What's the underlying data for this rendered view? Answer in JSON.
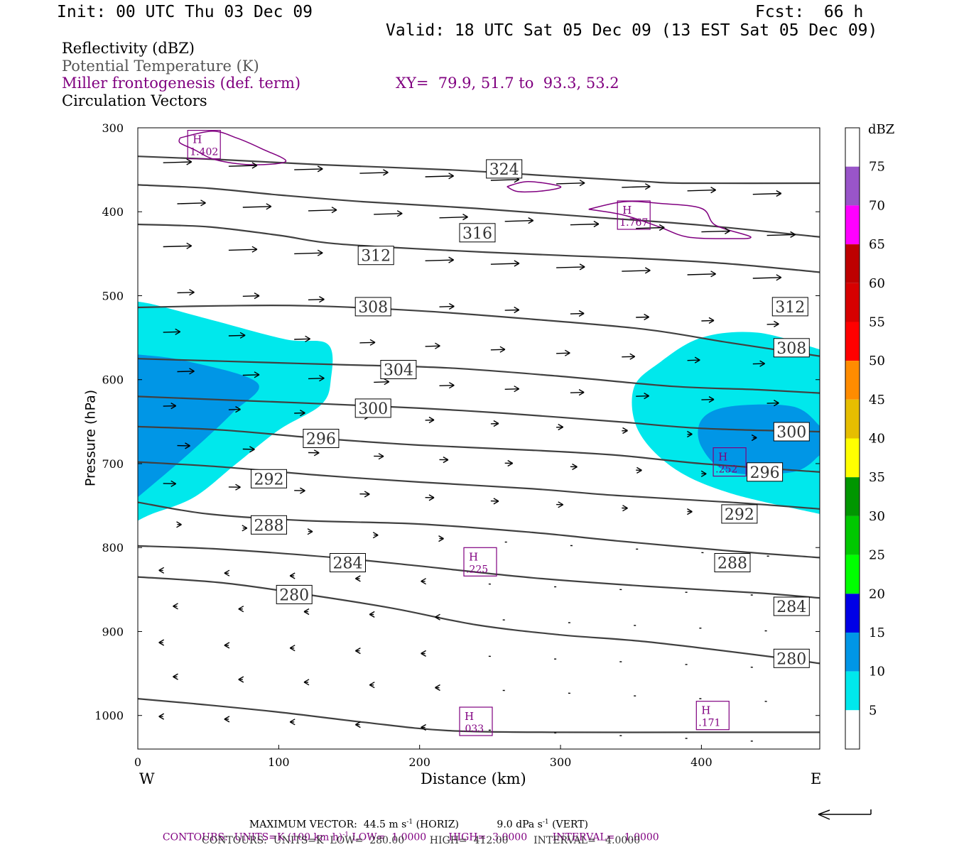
{
  "header": {
    "init": "Init: 00 UTC Thu 03 Dec 09",
    "fcst": "Fcst:  66 h",
    "valid": "Valid: 18 UTC Sat 05 Dec 09 (13 EST Sat 05 Dec 09)"
  },
  "legend_lines": {
    "reflectivity": "Reflectivity (dBZ)",
    "theta": "Potential Temperature (K)",
    "frontogenesis": "Miller frontogenesis (def. term)",
    "xy": "XY=  79.9, 51.7 to  93.3, 53.2",
    "vectors": "Circulation Vectors"
  },
  "footer": {
    "max_vector_label": "MAXIMUM VECTOR:",
    "max_vector_horiz": "44.5 m s",
    "max_vector_horiz_unit": "(HORIZ)",
    "max_vector_vert": "9.0 dPa s",
    "max_vector_vert_unit": "(VERT)",
    "contours_purple": "CONTOURS:  UNITS=K (100 km h)",
    "contours_purple_rest": " LOW=  1.0000       HIGH=  3.0000        INTERVAL=   1.0000",
    "contours_black": "CONTOURS:  UNITS=K  LOW=  280.00        HIGH=  412.00        INTERVAL=   4.0000"
  },
  "colors": {
    "cyan": "#00e8ec",
    "blue10": "#0096e6",
    "theta": "#404040",
    "front": "#800080"
  },
  "chart_data": {
    "type": "cross-section",
    "xlabel": "Distance (km)",
    "ylabel": "Pressure (hPa)",
    "xlim": [
      0,
      484
    ],
    "ylim": [
      1040,
      300
    ],
    "x_ticks": [
      0,
      100,
      200,
      300,
      400
    ],
    "y_ticks": [
      300,
      400,
      500,
      600,
      700,
      800,
      900,
      1000
    ],
    "x_end_labels": {
      "left": "W",
      "right": "E"
    },
    "colorbar": {
      "unit": "dBZ",
      "levels": [
        5,
        10,
        15,
        20,
        25,
        30,
        35,
        40,
        45,
        50,
        55,
        60,
        65,
        70,
        75
      ],
      "colors": [
        "#ffffff",
        "#00e8ec",
        "#0096e6",
        "#0000e6",
        "#00ff00",
        "#00c800",
        "#009600",
        "#ffff00",
        "#e6be00",
        "#ff8c00",
        "#ff0000",
        "#d70000",
        "#bd0000",
        "#ff00ff",
        "#9955c9",
        "#ffffff"
      ]
    },
    "reflectivity_areas": [
      {
        "dbz": 5,
        "points": [
          [
            0,
            507
          ],
          [
            15,
            512
          ],
          [
            55,
            530
          ],
          [
            105,
            552
          ],
          [
            135,
            558
          ],
          [
            137,
            600
          ],
          [
            130,
            630
          ],
          [
            100,
            660
          ],
          [
            70,
            700
          ],
          [
            40,
            740
          ],
          [
            10,
            760
          ],
          [
            0,
            768
          ]
        ]
      },
      {
        "dbz": 10,
        "points": [
          [
            0,
            570
          ],
          [
            35,
            578
          ],
          [
            85,
            604
          ],
          [
            67,
            640
          ],
          [
            35,
            690
          ],
          [
            0,
            740
          ]
        ]
      },
      {
        "dbz": 5,
        "points": [
          [
            484,
            564
          ],
          [
            440,
            544
          ],
          [
            400,
            550
          ],
          [
            370,
            580
          ],
          [
            352,
            610
          ],
          [
            355,
            660
          ],
          [
            380,
            705
          ],
          [
            420,
            735
          ],
          [
            484,
            760
          ]
        ]
      },
      {
        "dbz": 10,
        "points": [
          [
            484,
            655
          ],
          [
            465,
            632
          ],
          [
            420,
            632
          ],
          [
            400,
            648
          ],
          [
            400,
            680
          ],
          [
            420,
            710
          ],
          [
            465,
            710
          ],
          [
            484,
            690
          ]
        ]
      }
    ],
    "theta_contours": [
      {
        "level": 324,
        "points": [
          [
            0,
            334
          ],
          [
            60,
            338
          ],
          [
            130,
            344
          ],
          [
            220,
            350
          ],
          [
            300,
            358
          ],
          [
            360,
            364
          ],
          [
            390,
            366
          ],
          [
            484,
            366
          ]
        ],
        "labels": [
          [
            260,
            349
          ]
        ]
      },
      {
        "level": 320,
        "points": [
          [
            0,
            368
          ],
          [
            50,
            372
          ],
          [
            100,
            380
          ],
          [
            160,
            388
          ],
          [
            240,
            396
          ],
          [
            320,
            406
          ],
          [
            400,
            416
          ],
          [
            484,
            430
          ]
        ],
        "labels": []
      },
      {
        "level": 316,
        "points": [
          [
            0,
            415
          ],
          [
            50,
            418
          ],
          [
            100,
            428
          ],
          [
            140,
            438
          ],
          [
            220,
            446
          ],
          [
            300,
            452
          ],
          [
            360,
            456
          ],
          [
            420,
            462
          ],
          [
            484,
            472
          ]
        ],
        "labels": [
          [
            241,
            425
          ]
        ]
      },
      {
        "level": 312,
        "points": [
          [
            0,
            514
          ],
          [
            60,
            512
          ],
          [
            120,
            512
          ],
          [
            200,
            518
          ],
          [
            280,
            528
          ],
          [
            360,
            540
          ],
          [
            420,
            556
          ],
          [
            484,
            572
          ]
        ],
        "labels": [
          [
            169,
            452
          ],
          [
            463,
            513
          ]
        ]
      },
      {
        "level": 308,
        "points": [
          [
            0,
            575
          ],
          [
            60,
            578
          ],
          [
            140,
            582
          ],
          [
            220,
            586
          ],
          [
            300,
            596
          ],
          [
            380,
            608
          ],
          [
            440,
            612
          ],
          [
            484,
            616
          ]
        ],
        "labels": [
          [
            167,
            513
          ],
          [
            464,
            562
          ]
        ]
      },
      {
        "level": 304,
        "points": [
          [
            0,
            620
          ],
          [
            60,
            624
          ],
          [
            120,
            628
          ],
          [
            200,
            634
          ],
          [
            260,
            640
          ],
          [
            340,
            650
          ],
          [
            400,
            658
          ],
          [
            484,
            662
          ]
        ],
        "labels": [
          [
            185,
            588
          ]
        ]
      },
      {
        "level": 300,
        "points": [
          [
            0,
            656
          ],
          [
            60,
            660
          ],
          [
            130,
            670
          ],
          [
            200,
            678
          ],
          [
            280,
            684
          ],
          [
            340,
            690
          ],
          [
            400,
            700
          ],
          [
            484,
            710
          ]
        ],
        "labels": [
          [
            167,
            634
          ],
          [
            464,
            662
          ]
        ]
      },
      {
        "level": 296,
        "points": [
          [
            0,
            698
          ],
          [
            60,
            704
          ],
          [
            130,
            714
          ],
          [
            200,
            722
          ],
          [
            280,
            730
          ],
          [
            340,
            738
          ],
          [
            420,
            746
          ],
          [
            484,
            754
          ]
        ],
        "labels": [
          [
            130,
            670
          ],
          [
            445,
            710
          ]
        ]
      },
      {
        "level": 292,
        "points": [
          [
            0,
            746
          ],
          [
            50,
            760
          ],
          [
            120,
            768
          ],
          [
            200,
            772
          ],
          [
            280,
            782
          ],
          [
            340,
            792
          ],
          [
            420,
            804
          ],
          [
            484,
            812
          ]
        ],
        "labels": [
          [
            93,
            718
          ],
          [
            427,
            760
          ]
        ]
      },
      {
        "level": 288,
        "points": [
          [
            0,
            798
          ],
          [
            60,
            802
          ],
          [
            140,
            812
          ],
          [
            200,
            822
          ],
          [
            280,
            836
          ],
          [
            360,
            846
          ],
          [
            440,
            854
          ],
          [
            484,
            860
          ]
        ],
        "labels": [
          [
            93,
            773
          ],
          [
            422,
            818
          ]
        ]
      },
      {
        "level": 284,
        "points": [
          [
            0,
            835
          ],
          [
            60,
            842
          ],
          [
            120,
            856
          ],
          [
            180,
            872
          ],
          [
            240,
            892
          ],
          [
            300,
            904
          ],
          [
            360,
            912
          ],
          [
            440,
            928
          ],
          [
            484,
            938
          ]
        ],
        "labels": [
          [
            149,
            818
          ],
          [
            464,
            870
          ]
        ]
      },
      {
        "level": 280,
        "points": [
          [
            0,
            980
          ],
          [
            40,
            986
          ],
          [
            100,
            996
          ],
          [
            160,
            1008
          ],
          [
            220,
            1018
          ],
          [
            300,
            1020
          ],
          [
            400,
            1020
          ],
          [
            484,
            1020
          ]
        ],
        "labels": [
          [
            111,
            856
          ],
          [
            464,
            932
          ]
        ]
      }
    ],
    "frontogenesis_contours": [
      {
        "points": [
          [
            30,
            312
          ],
          [
            53,
            304
          ],
          [
            70,
            312
          ],
          [
            88,
            325
          ],
          [
            105,
            340
          ],
          [
            80,
            344
          ],
          [
            55,
            338
          ],
          [
            40,
            326
          ],
          [
            30,
            318
          ],
          [
            30,
            312
          ]
        ]
      },
      {
        "points": [
          [
            262,
            370
          ],
          [
            277,
            364
          ],
          [
            300,
            370
          ],
          [
            288,
            375
          ],
          [
            270,
            376
          ],
          [
            262,
            370
          ]
        ]
      },
      {
        "points": [
          [
            320,
            397
          ],
          [
            345,
            388
          ],
          [
            370,
            390
          ],
          [
            400,
            396
          ],
          [
            410,
            416
          ],
          [
            435,
            430
          ],
          [
            418,
            432
          ],
          [
            390,
            430
          ],
          [
            370,
            418
          ],
          [
            345,
            404
          ],
          [
            320,
            397
          ]
        ]
      }
    ],
    "highs": [
      {
        "x": 47,
        "p": 320,
        "value": "1.402"
      },
      {
        "x": 352,
        "p": 404,
        "value": "1.767"
      },
      {
        "x": 243,
        "p": 817,
        "value": ".225"
      },
      {
        "x": 420,
        "p": 698,
        "value": ".252"
      },
      {
        "x": 240,
        "p": 1007,
        "value": ".033"
      },
      {
        "x": 408,
        "p": 1000,
        "value": ".171"
      }
    ],
    "max_vector": {
      "horiz_m_s": 44.5,
      "vert_dPa_s": 9.0
    },
    "contour_units": {
      "frontogenesis": {
        "low": 1.0,
        "high": 3.0,
        "interval": 1.0
      },
      "theta": {
        "low": 280.0,
        "high": 412.0,
        "interval": 4.0
      }
    }
  }
}
